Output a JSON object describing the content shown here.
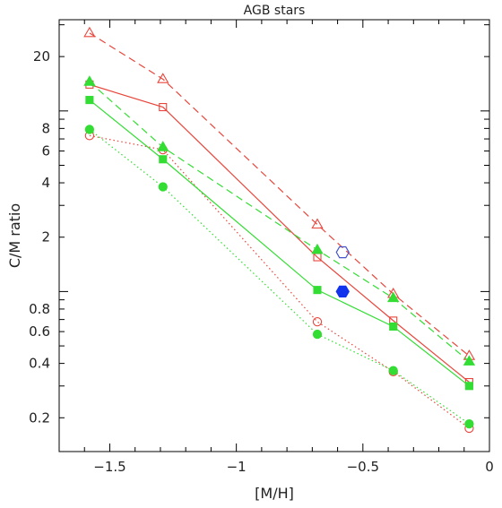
{
  "chart_data": {
    "type": "line",
    "title": "AGB stars",
    "xlabel": "[M/H]",
    "ylabel": "C/M ratio",
    "xlim": [
      -1.7,
      0
    ],
    "ylim": [
      0.13,
      32
    ],
    "yscale": "log",
    "grid": false,
    "x_ticks": [
      -1.5,
      -1,
      -0.5,
      0
    ],
    "x_tick_labels": [
      "−1.5",
      "−1",
      "−0.5",
      "0"
    ],
    "y_ticks": [
      0.2,
      0.4,
      0.6,
      0.8,
      2,
      4,
      6,
      8,
      20
    ],
    "y_tick_labels": [
      "0.2",
      "0.4",
      "0.6",
      "0.8",
      "2",
      "4",
      "6",
      "8",
      "20"
    ],
    "series": [
      {
        "x": [
          -1.58,
          -1.29,
          -0.68,
          -0.38,
          -0.08
        ],
        "values": [
          27,
          15,
          2.35,
          0.97,
          0.44
        ],
        "color": "#e8463c",
        "line": "dashed",
        "marker": "triangle",
        "filled": false
      },
      {
        "x": [
          -1.58,
          -1.29,
          -0.68,
          -0.38,
          -0.08
        ],
        "values": [
          14,
          10.5,
          1.55,
          0.69,
          0.315
        ],
        "color": "#e8463c",
        "line": "solid",
        "marker": "square",
        "filled": false
      },
      {
        "x": [
          -1.58,
          -1.29,
          -0.68,
          -0.38,
          -0.08
        ],
        "values": [
          7.3,
          6.1,
          0.68,
          0.36,
          0.175
        ],
        "color": "#e8463c",
        "line": "dotted",
        "marker": "circle",
        "filled": false
      },
      {
        "x": [
          -1.58,
          -1.29,
          -0.68,
          -0.38,
          -0.08
        ],
        "values": [
          14.5,
          6.3,
          1.7,
          0.92,
          0.41
        ],
        "color": "#33dd33",
        "line": "dashed",
        "marker": "triangle",
        "filled": true
      },
      {
        "x": [
          -1.58,
          -1.29,
          -0.68,
          -0.38,
          -0.08
        ],
        "values": [
          11.5,
          5.4,
          1.02,
          0.64,
          0.3
        ],
        "color": "#33dd33",
        "line": "solid",
        "marker": "square",
        "filled": true
      },
      {
        "x": [
          -1.58,
          -1.29,
          -0.68,
          -0.38,
          -0.08
        ],
        "values": [
          7.9,
          3.8,
          0.58,
          0.365,
          0.185
        ],
        "color": "#33dd33",
        "line": "dotted",
        "marker": "circle",
        "filled": true
      }
    ],
    "extra_points": [
      {
        "x": -0.58,
        "y": 1.65,
        "color": "#4455cc",
        "marker": "hexagon",
        "filled": false
      },
      {
        "x": -0.58,
        "y": 1.0,
        "color": "#1133ee",
        "marker": "hexagon",
        "filled": true
      }
    ]
  }
}
